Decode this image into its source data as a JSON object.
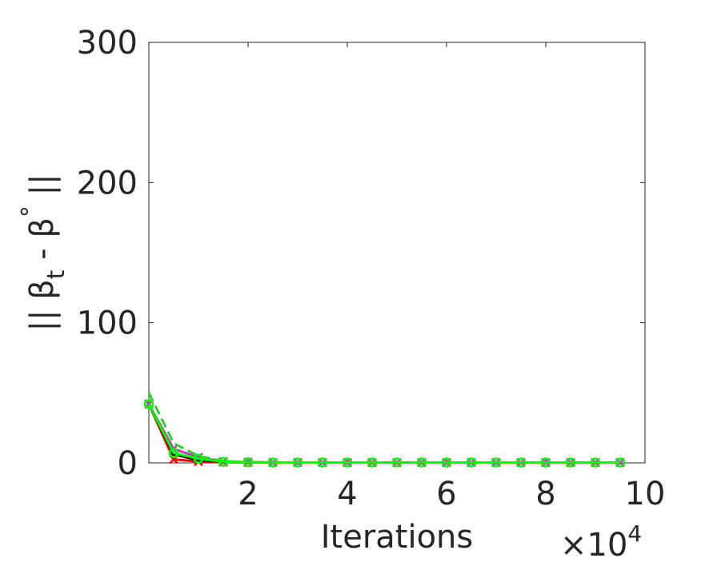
{
  "chart_data": {
    "type": "line",
    "xlabel": "Iterations",
    "x_multiplier": {
      "base": "×10",
      "exponent": "4"
    },
    "ylabel": [
      "|| β",
      "t",
      " - β",
      "°",
      " ||"
    ],
    "x": [
      0,
      0.5,
      1,
      1.5,
      2,
      2.5,
      3,
      3.5,
      4,
      4.5,
      5,
      5.5,
      6,
      6.5,
      7,
      7.5,
      8,
      8.5,
      9,
      9.5
    ],
    "series": [
      {
        "color": "#ff0000",
        "marker": "x",
        "dash": false,
        "values": [
          42,
          2.5,
          1,
          0.5,
          0.3,
          0.2,
          0.2,
          0.2,
          0.2,
          0.2,
          0.2,
          0.2,
          0.2,
          0.2,
          0.2,
          0.2,
          0.2,
          0.2,
          0.2,
          0.2
        ]
      },
      {
        "color": "#cc33cc",
        "marker": "x",
        "dash": false,
        "values": [
          42,
          10,
          4,
          1,
          0.5,
          0.3,
          0.3,
          0.3,
          0.3,
          0.3,
          0.3,
          0.3,
          0.3,
          0.3,
          0.3,
          0.3,
          0.3,
          0.3,
          0.3,
          0.3
        ]
      },
      {
        "color": "#000000",
        "marker": "none",
        "dash": false,
        "values": [
          42,
          6,
          2,
          0.8,
          0.4,
          0.2,
          0.2,
          0.2,
          0.2,
          0.2,
          0.2,
          0.2,
          0.2,
          0.2,
          0.2,
          0.2,
          0.2,
          0.2,
          0.2,
          0.2
        ]
      },
      {
        "color": "#33cc33",
        "marker": "none",
        "dash": true,
        "values": [
          50,
          14,
          5,
          1.2,
          0.5,
          0.3,
          0.3,
          0.3,
          0.3,
          0.3,
          0.3,
          0.3,
          0.3,
          0.3,
          0.3,
          0.3,
          0.3,
          0.3,
          0.3,
          0.3
        ]
      },
      {
        "color": "#00ff00",
        "marker": "o",
        "dash": false,
        "values": [
          42,
          7,
          3,
          0.8,
          0.4,
          0.3,
          0.3,
          0.3,
          0.3,
          0.3,
          0.3,
          0.3,
          0.3,
          0.3,
          0.3,
          0.3,
          0.3,
          0.3,
          0.3,
          0.3
        ]
      }
    ],
    "xlim": [
      0,
      10
    ],
    "xticks": [
      2,
      4,
      6,
      8,
      10
    ],
    "ylim": [
      0,
      300
    ],
    "yticks": [
      0,
      100,
      200,
      300
    ],
    "grid": false
  }
}
